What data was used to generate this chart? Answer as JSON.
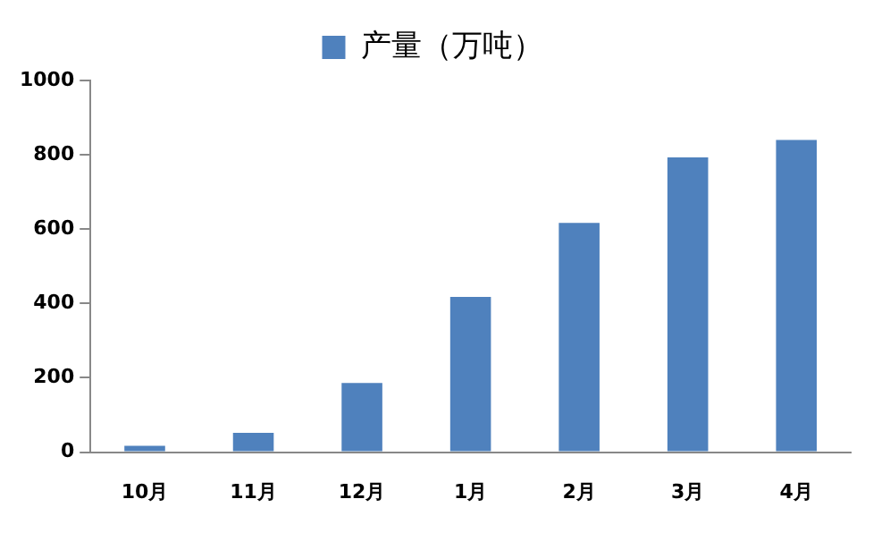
{
  "chart_data": {
    "type": "bar",
    "categories": [
      "10月",
      "11月",
      "12月",
      "1月",
      "2月",
      "3月",
      "4月"
    ],
    "series": [
      {
        "name": "产量（万吨）",
        "color": "#4f81bd",
        "values": [
          17,
          52,
          186,
          418,
          617,
          793,
          840
        ]
      }
    ],
    "ylim": [
      0,
      1000
    ],
    "yticks": [
      0,
      200,
      400,
      600,
      800,
      1000
    ],
    "grid": false,
    "legend": "top"
  }
}
